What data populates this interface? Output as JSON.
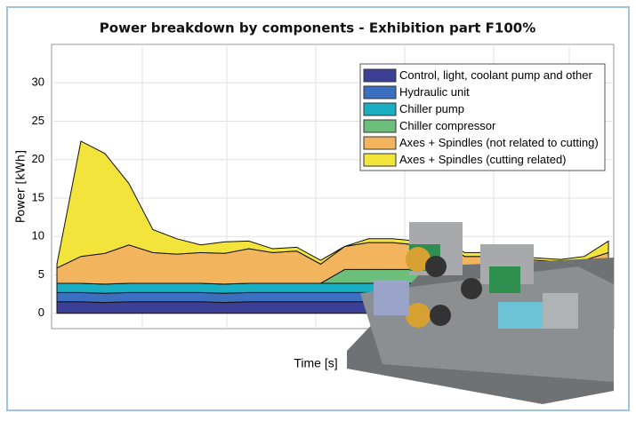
{
  "chart_data": {
    "type": "stacked-area",
    "title": "Power breakdown by components - Exhibition part F100%",
    "xlabel": "Time [s]",
    "ylabel": "Power [kWh]",
    "categories": [
      null,
      null,
      null,
      null,
      null,
      null,
      null,
      null,
      null,
      null,
      null,
      null,
      null,
      null,
      null,
      null,
      null,
      null,
      null,
      null,
      null,
      null,
      null,
      null
    ],
    "ylim": [
      -2,
      35
    ],
    "yticks": [
      0,
      5,
      10,
      15,
      20,
      25,
      30
    ],
    "grid": true,
    "legend": "upper right",
    "series": [
      {
        "name": "Control, light, coolant pump and other",
        "color": "#3b3f95",
        "values": [
          1.5,
          1.5,
          1.4,
          1.5,
          1.5,
          1.5,
          1.5,
          1.4,
          1.5,
          1.5,
          1.5,
          1.5,
          1.5,
          1.5,
          1.5,
          1.5,
          1.5,
          1.5,
          1.5,
          1.5,
          1.5,
          1.5,
          1.5,
          1.5
        ]
      },
      {
        "name": "Hydraulic unit",
        "color": "#3c6fc0",
        "values": [
          1.2,
          1.2,
          1.2,
          1.2,
          1.2,
          1.2,
          1.2,
          1.2,
          1.2,
          1.2,
          1.2,
          1.2,
          1.2,
          1.2,
          1.2,
          1.2,
          1.2,
          1.2,
          1.2,
          1.2,
          1.2,
          1.2,
          1.2,
          1.2
        ]
      },
      {
        "name": "Chiller pump",
        "color": "#1aaec3",
        "values": [
          1.2,
          1.2,
          1.2,
          1.2,
          1.2,
          1.2,
          1.2,
          1.2,
          1.2,
          1.2,
          1.2,
          1.2,
          1.2,
          1.2,
          1.2,
          1.2,
          1.2,
          1.2,
          1.2,
          1.2,
          1.2,
          1.2,
          1.2,
          1.2
        ]
      },
      {
        "name": "Chiller compressor",
        "color": "#6cbf7a",
        "values": [
          0,
          0,
          0,
          0,
          0,
          0,
          0,
          0,
          0,
          0,
          0,
          0,
          1.8,
          1.8,
          1.8,
          1.8,
          1.8,
          0,
          0,
          0,
          0,
          0,
          0,
          0
        ]
      },
      {
        "name": "Axes + Spindles (not related to cutting)",
        "color": "#f2b45c",
        "values": [
          2,
          3.5,
          4,
          5,
          4,
          3.8,
          4,
          4,
          4.5,
          4,
          4.2,
          2.5,
          3,
          3.5,
          3.5,
          3.2,
          3.8,
          3.5,
          3.5,
          3.2,
          3,
          2.8,
          3,
          4
        ]
      },
      {
        "name": "Axes + Spindles (cutting related)",
        "color": "#f2e43a",
        "values": [
          0.5,
          15,
          13,
          8,
          3,
          2,
          1,
          1.5,
          1,
          0.5,
          0.5,
          0.5,
          0,
          0.5,
          0.5,
          0.5,
          0.5,
          0.5,
          0.5,
          0.3,
          0.3,
          0.3,
          0.5,
          1.5
        ]
      }
    ]
  }
}
